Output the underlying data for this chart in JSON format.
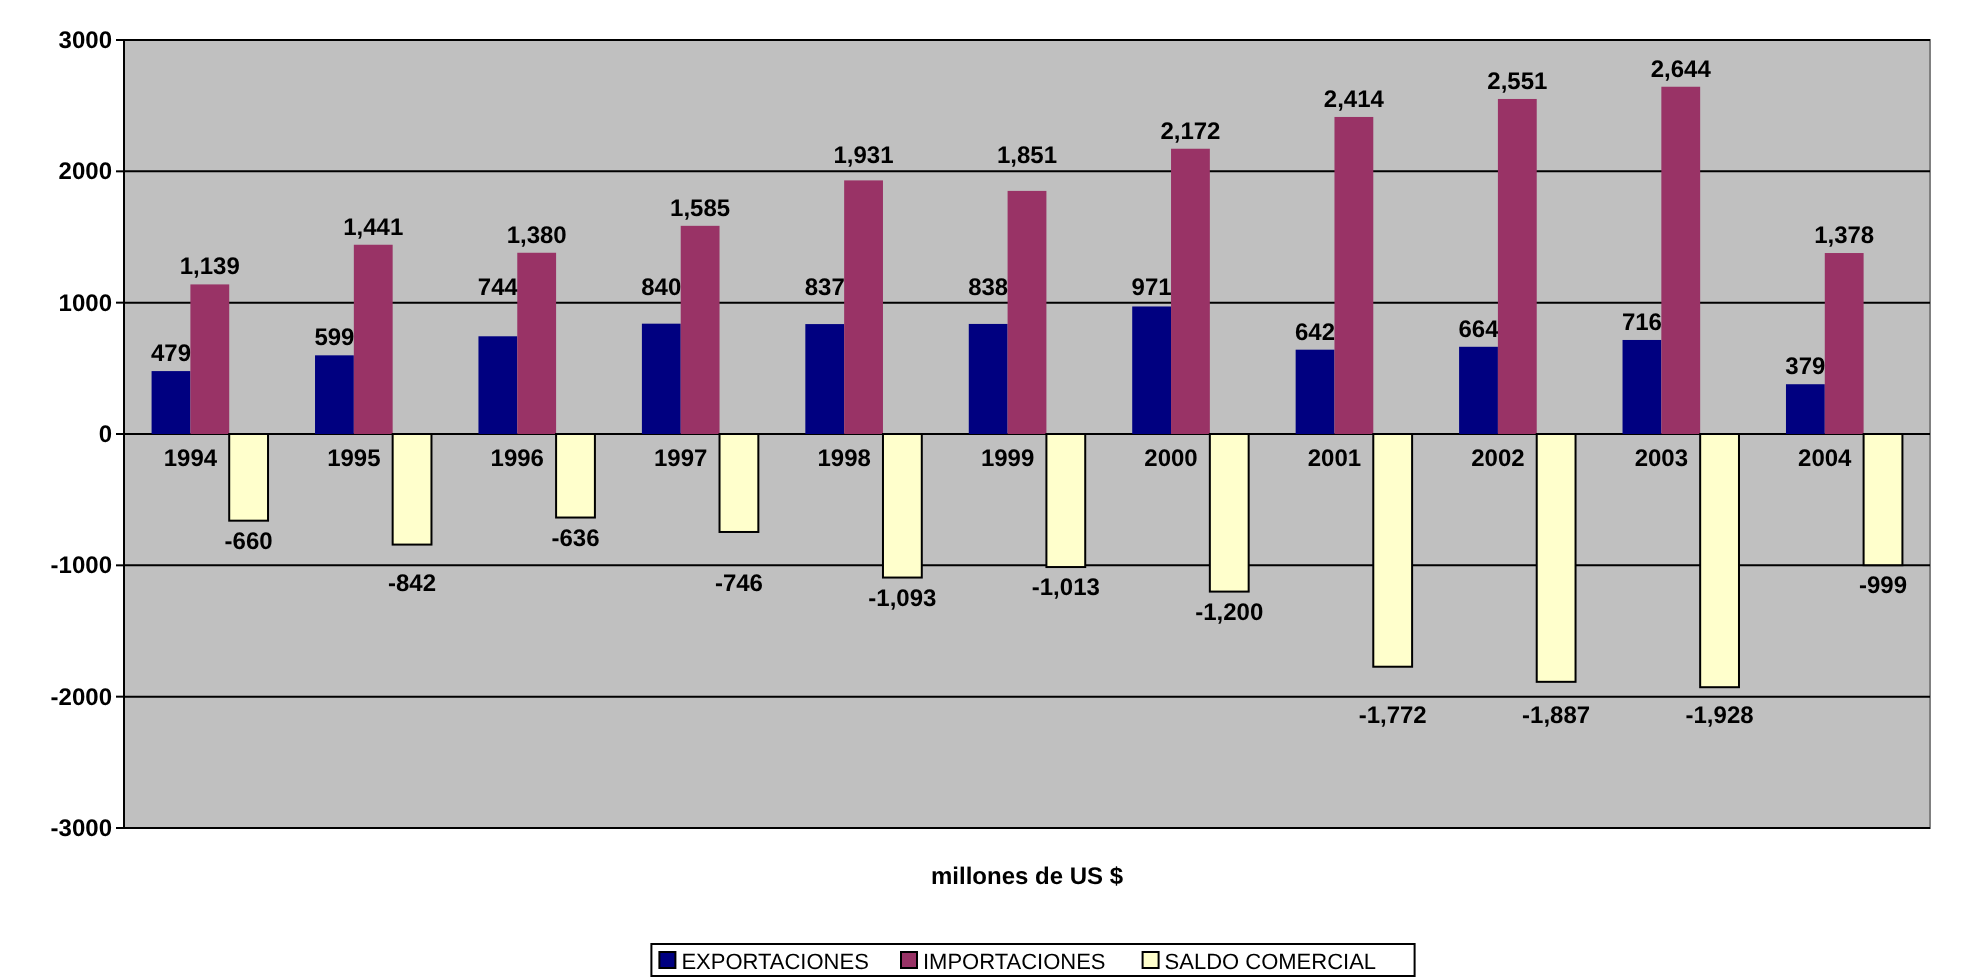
{
  "chart_data": {
    "type": "bar",
    "xlabel": "millones de US $",
    "categories": [
      "1994",
      "1995",
      "1996",
      "1997",
      "1998",
      "1999",
      "2000",
      "2001",
      "2002",
      "2003",
      "2004"
    ],
    "series": [
      {
        "name": "EXPORTACIONES",
        "color": "#000080",
        "values": [
          479,
          599,
          744,
          840,
          837,
          838,
          971,
          642,
          664,
          716,
          379
        ],
        "value_labels": [
          "479",
          "599",
          "744",
          "840",
          "837",
          "838",
          "971",
          "642",
          "664",
          "716",
          "379"
        ]
      },
      {
        "name": "IMPORTACIONES",
        "color": "#993366",
        "values": [
          1139,
          1441,
          1380,
          1585,
          1931,
          1851,
          2172,
          2414,
          2551,
          2644,
          1378
        ],
        "value_labels": [
          "1,139",
          "1,441",
          "1,380",
          "1,585",
          "1,931",
          "1,851",
          "2,172",
          "2,414",
          "2,551",
          "2,644",
          "1,378"
        ]
      },
      {
        "name": "SALDO COMERCIAL",
        "color": "#ffffcc",
        "values": [
          -660,
          -842,
          -636,
          -746,
          -1093,
          -1013,
          -1200,
          -1772,
          -1887,
          -1928,
          -999
        ],
        "value_labels": [
          "-660",
          "-842",
          "-636",
          "-746",
          "-1,093",
          "-1,013",
          "-1,200",
          "-1,772",
          "-1,887",
          "-1,928",
          "-999"
        ]
      }
    ],
    "ylim": [
      -3000,
      3000
    ],
    "yticks": [
      -3000,
      -2000,
      -1000,
      0,
      1000,
      2000,
      3000
    ],
    "grid": "y",
    "legend": "bottom"
  }
}
